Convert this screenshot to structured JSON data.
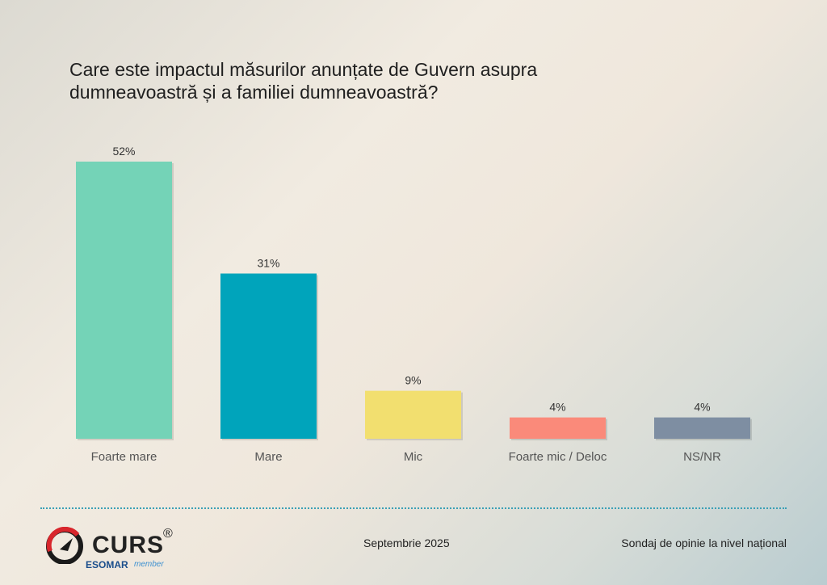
{
  "title": "Care este impactul măsurilor anunțate de Guvern asupra dumneavoastră și a familiei dumneavoastră?",
  "footer": {
    "date": "Septembrie 2025",
    "source": "Sondaj de opinie la nivel național"
  },
  "logo": {
    "name": "CURS",
    "reg": "®",
    "sub": "ESOMAR",
    "sub2": "member"
  },
  "chart_data": {
    "type": "bar",
    "title": "Care este impactul măsurilor anunțate de Guvern asupra dumneavoastră și a familiei dumneavoastră?",
    "categories": [
      "Foarte mare",
      "Mare",
      "Mic",
      "Foarte mic / Deloc",
      "NS/NR"
    ],
    "values": [
      52,
      31,
      9,
      4,
      4
    ],
    "value_labels": [
      "52%",
      "31%",
      "9%",
      "4%",
      "4%"
    ],
    "colors": [
      "#74d3b7",
      "#00a4bb",
      "#f2df6f",
      "#fa8a7a",
      "#7e8ea2"
    ],
    "xlabel": "",
    "ylabel": "",
    "ylim": [
      0,
      52
    ],
    "grid": false,
    "legend": "none"
  }
}
